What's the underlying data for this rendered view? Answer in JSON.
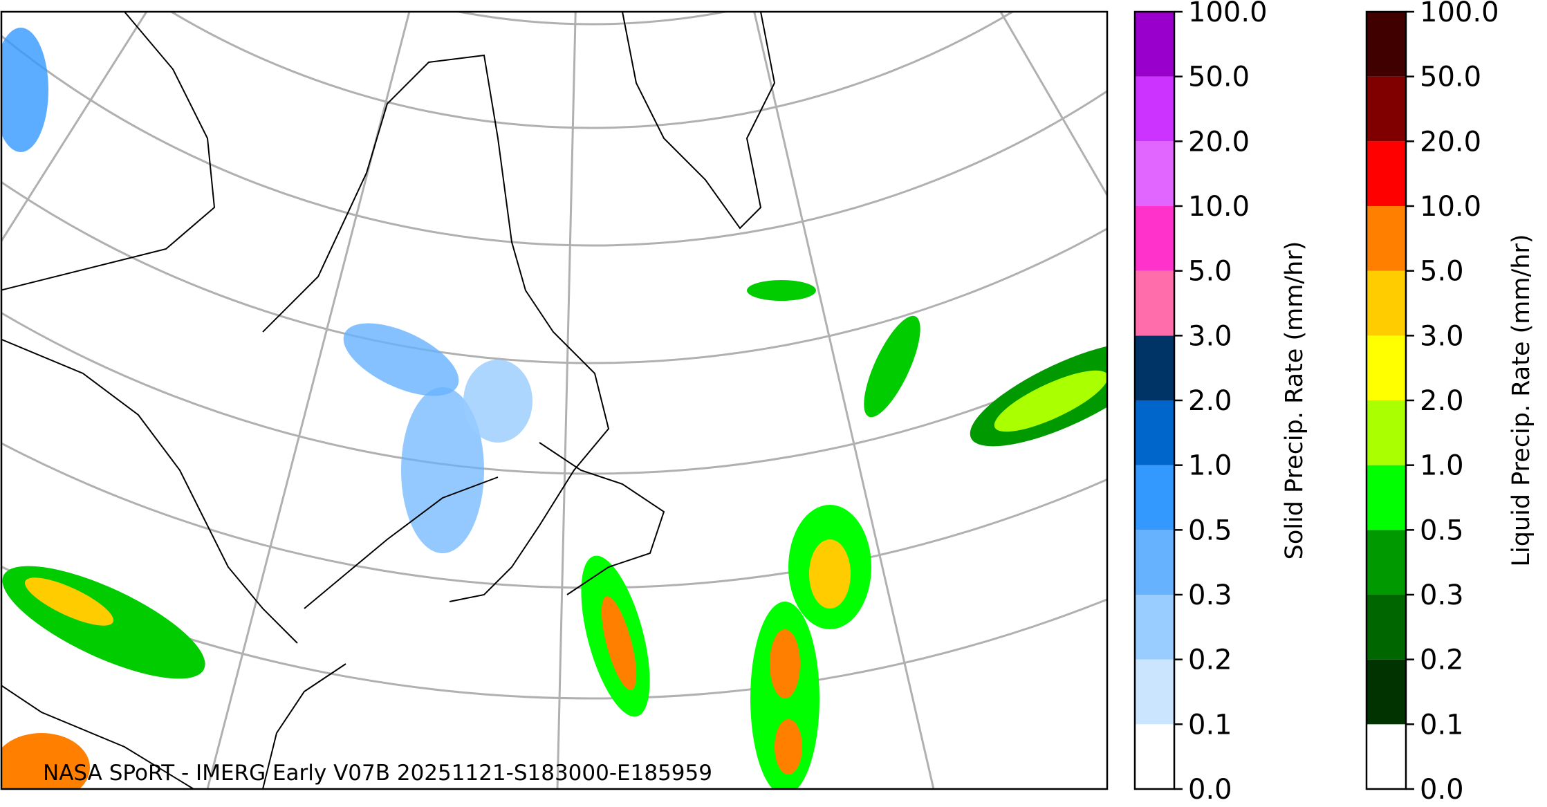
{
  "map": {
    "annotation": "NASA SPoRT - IMERG Early V07B 20251121-S183000-E185959"
  },
  "colorbars": [
    {
      "label": "Solid Precip. Rate (mm/hr)",
      "ticks": [
        {
          "value": 0,
          "label": "0.0"
        },
        {
          "value": 0.1,
          "label": "0.1"
        },
        {
          "value": 0.2,
          "label": "0.2"
        },
        {
          "value": 0.3,
          "label": "0.3"
        },
        {
          "value": 0.5,
          "label": "0.5"
        },
        {
          "value": 1,
          "label": "1.0"
        },
        {
          "value": 2,
          "label": "2.0"
        },
        {
          "value": 3,
          "label": "3.0"
        },
        {
          "value": 5,
          "label": "5.0"
        },
        {
          "value": 10,
          "label": "10.0"
        },
        {
          "value": 20,
          "label": "20.0"
        },
        {
          "value": 50,
          "label": "50.0"
        },
        {
          "value": 100,
          "label": "100.0"
        }
      ],
      "colors": [
        "#ffffff",
        "#cce5ff",
        "#99ccff",
        "#66b2ff",
        "#3399ff",
        "#0066cc",
        "#003366",
        "#ff6eaa",
        "#ff33cc",
        "#e066ff",
        "#cc33ff",
        "#9900cc"
      ]
    },
    {
      "label": "Liquid Precip. Rate (mm/hr)",
      "ticks": [
        {
          "value": 0,
          "label": "0.0"
        },
        {
          "value": 0.1,
          "label": "0.1"
        },
        {
          "value": 0.2,
          "label": "0.2"
        },
        {
          "value": 0.3,
          "label": "0.3"
        },
        {
          "value": 0.5,
          "label": "0.5"
        },
        {
          "value": 1,
          "label": "1.0"
        },
        {
          "value": 2,
          "label": "2.0"
        },
        {
          "value": 3,
          "label": "3.0"
        },
        {
          "value": 5,
          "label": "5.0"
        },
        {
          "value": 10,
          "label": "10.0"
        },
        {
          "value": 20,
          "label": "20.0"
        },
        {
          "value": 50,
          "label": "50.0"
        },
        {
          "value": 100,
          "label": "100.0"
        }
      ],
      "colors": [
        "#ffffff",
        "#003300",
        "#006600",
        "#009900",
        "#00ff00",
        "#aaff00",
        "#ffff00",
        "#ffcc00",
        "#ff8000",
        "#ff0000",
        "#800000",
        "#400000"
      ]
    }
  ]
}
